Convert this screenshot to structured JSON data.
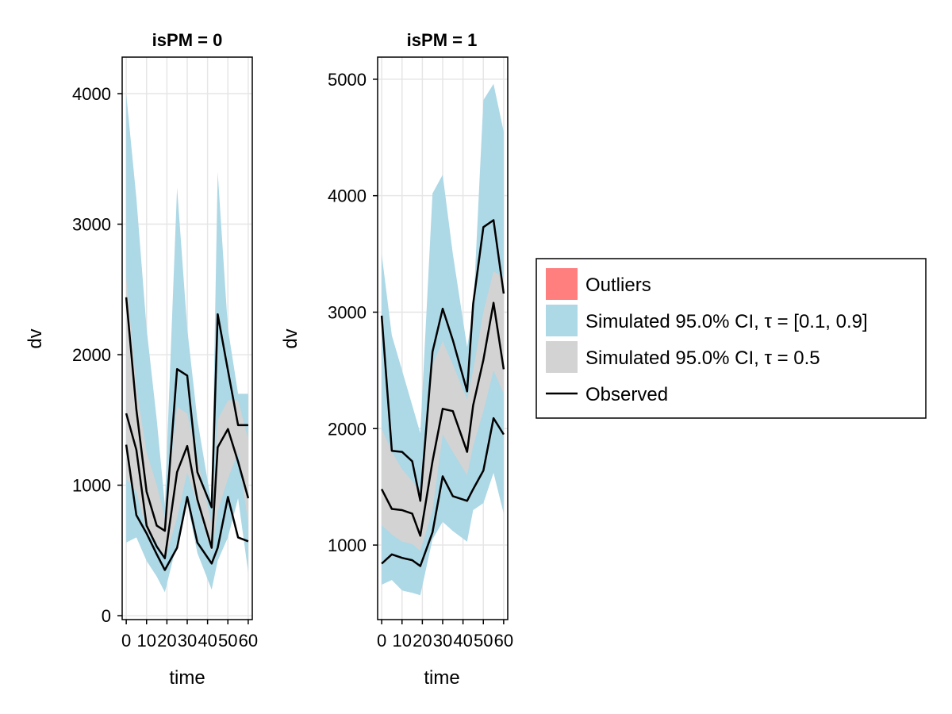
{
  "chart_data": {
    "type": "area",
    "x": [
      0,
      5,
      10,
      15,
      20,
      25,
      30,
      35,
      40,
      45,
      50,
      55,
      60
    ],
    "legend": {
      "items": [
        {
          "label": "Outliers",
          "kind": "patch",
          "color": "#ff7f7f"
        },
        {
          "label": "Simulated 95.0% CI, τ = [0.1, 0.9]",
          "kind": "patch",
          "color": "#add8e6"
        },
        {
          "label": "Simulated 95.0% CI, τ = 0.5",
          "kind": "patch",
          "color": "#d3d3d3"
        },
        {
          "label": "Observed",
          "kind": "line",
          "color": "#000000"
        }
      ]
    },
    "panels": [
      {
        "title": "isPM = 0",
        "xlabel": "time",
        "ylabel": "dv",
        "xlim": [
          -2,
          62
        ],
        "ylim": [
          -30,
          4280
        ],
        "xticks": [
          0,
          10,
          20,
          30,
          40,
          50,
          60
        ],
        "yticks": [
          0,
          1000,
          2000,
          3000,
          4000
        ],
        "bands": [
          {
            "name": "Simulated 95.0% CI, τ = [0.1, 0.9]",
            "color": "#add8e6",
            "x": [
              0,
              5,
              10,
              15,
              19,
              25,
              30,
              35,
              42,
              45,
              50,
              55,
              60
            ],
            "lower": [
              560,
              600,
              420,
              300,
              180,
              560,
              870,
              480,
              200,
              420,
              600,
              900,
              330
            ],
            "upper": [
              4000,
              3200,
              2200,
              1500,
              850,
              3280,
              2200,
              1500,
              850,
              3400,
              2200,
              1700,
              1700
            ]
          },
          {
            "name": "Simulated 95.0% CI, τ = 0.5",
            "color": "#d3d3d3",
            "x": [
              0,
              5,
              10,
              15,
              19,
              25,
              30,
              35,
              42,
              45,
              50,
              55,
              60
            ],
            "lower": [
              1050,
              950,
              650,
              560,
              430,
              750,
              1100,
              850,
              480,
              800,
              1050,
              1250,
              700
            ],
            "upper": [
              2600,
              1750,
              1250,
              1000,
              750,
              1600,
              1550,
              1200,
              700,
              1500,
              1650,
              1650,
              1350
            ]
          }
        ],
        "series": [
          {
            "name": "Observed",
            "x": [
              0,
              5,
              10,
              15,
              19,
              25,
              30,
              35,
              42,
              45,
              50,
              55,
              60
            ],
            "values": [
              2440,
              1580,
              950,
              690,
              650,
              1890,
              1840,
              1100,
              830,
              2310,
              1880,
              1460,
              1460
            ]
          },
          {
            "name": "Observed",
            "x": [
              0,
              5,
              10,
              15,
              19,
              25,
              30,
              35,
              42,
              45,
              50,
              55,
              60
            ],
            "values": [
              1550,
              1270,
              690,
              530,
              440,
              1100,
              1300,
              890,
              520,
              1290,
              1430,
              1180,
              900
            ]
          },
          {
            "name": "Observed",
            "x": [
              0,
              5,
              10,
              15,
              19,
              25,
              30,
              35,
              42,
              45,
              50,
              55,
              60
            ],
            "values": [
              1310,
              770,
              630,
              470,
              350,
              520,
              910,
              560,
              400,
              520,
              910,
              600,
              570
            ]
          }
        ]
      },
      {
        "title": "isPM = 1",
        "xlabel": "time",
        "ylabel": "dv",
        "xlim": [
          -2,
          62
        ],
        "ylim": [
          360,
          5190
        ],
        "xticks": [
          0,
          10,
          20,
          30,
          40,
          50,
          60
        ],
        "yticks": [
          1000,
          2000,
          3000,
          4000,
          5000
        ],
        "bands": [
          {
            "name": "Simulated 95.0% CI, τ = [0.1, 0.9]",
            "color": "#add8e6",
            "x": [
              0,
              5,
              10,
              15,
              19,
              25,
              30,
              35,
              42,
              45,
              50,
              55,
              60
            ],
            "lower": [
              660,
              700,
              610,
              590,
              570,
              1050,
              1200,
              1120,
              1030,
              1300,
              1360,
              1620,
              1270
            ],
            "upper": [
              3500,
              2800,
              2500,
              2200,
              1960,
              4020,
              4180,
              3500,
              2700,
              3000,
              4820,
              4960,
              4550
            ]
          },
          {
            "name": "Simulated 95.0% CI, τ = 0.5",
            "color": "#d3d3d3",
            "x": [
              0,
              5,
              10,
              15,
              19,
              25,
              30,
              35,
              42,
              45,
              50,
              55,
              60
            ],
            "lower": [
              1170,
              1090,
              1030,
              1010,
              950,
              1300,
              1950,
              1800,
              1600,
              1850,
              2150,
              2500,
              2300
            ],
            "upper": [
              2000,
              1800,
              1650,
              1550,
              1450,
              2550,
              2750,
              2550,
              2250,
              2500,
              3000,
              3350,
              3300
            ]
          }
        ],
        "series": [
          {
            "name": "Observed",
            "x": [
              0,
              5,
              10,
              15,
              19,
              25,
              30,
              35,
              42,
              45,
              50,
              55,
              60
            ],
            "values": [
              2970,
              1810,
              1800,
              1720,
              1380,
              2660,
              3030,
              2760,
              2320,
              3070,
              3730,
              3790,
              3160
            ]
          },
          {
            "name": "Observed",
            "x": [
              0,
              5,
              10,
              15,
              19,
              25,
              30,
              35,
              42,
              45,
              50,
              55,
              60
            ],
            "values": [
              1480,
              1310,
              1300,
              1270,
              1080,
              1720,
              2170,
              2150,
              1800,
              2200,
              2590,
              3080,
              2510
            ]
          },
          {
            "name": "Observed",
            "x": [
              0,
              5,
              10,
              15,
              19,
              25,
              30,
              35,
              42,
              45,
              50,
              55,
              60
            ],
            "values": [
              840,
              920,
              890,
              870,
              820,
              1110,
              1590,
              1420,
              1380,
              1480,
              1640,
              2090,
              1950
            ]
          }
        ]
      }
    ]
  }
}
